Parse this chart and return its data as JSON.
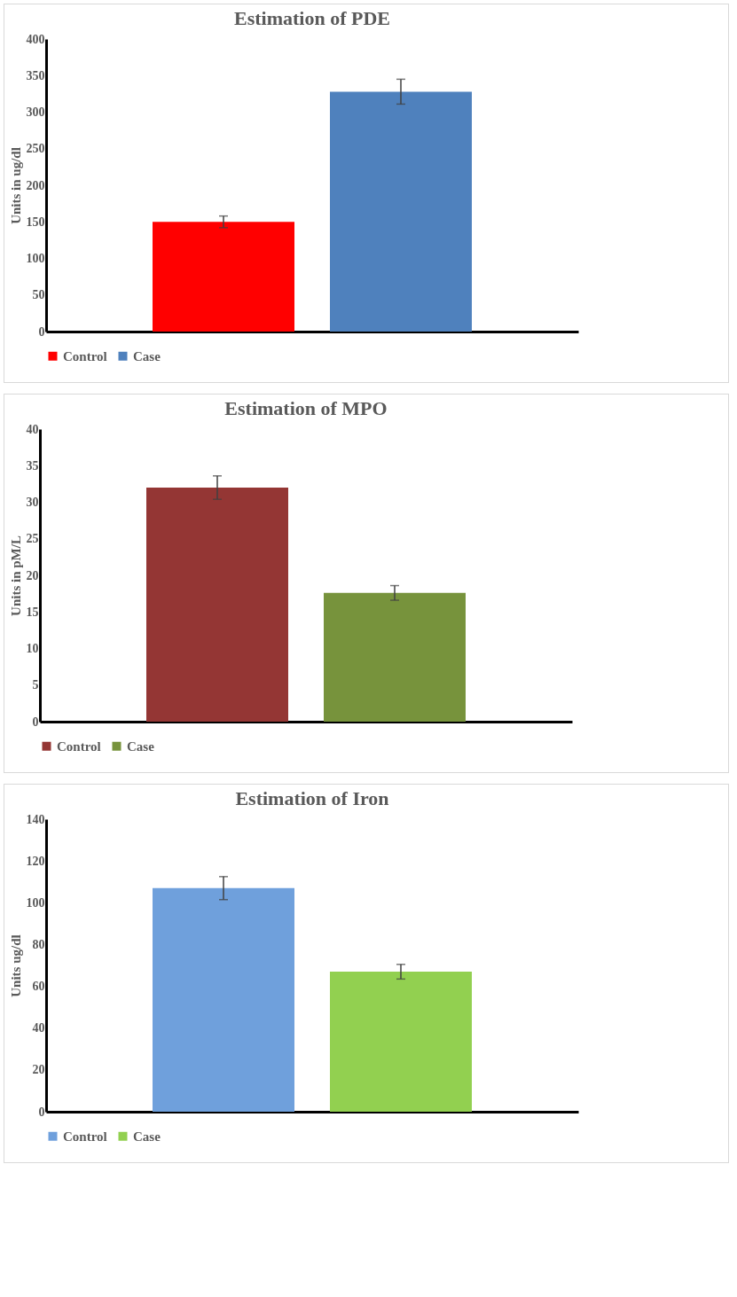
{
  "chart_data": [
    {
      "type": "bar",
      "title": "Estimation of PDE",
      "ylabel": "Units  in ug/dl",
      "categories": [
        null
      ],
      "ylim": [
        0,
        400
      ],
      "yticks": [
        0,
        50,
        100,
        150,
        200,
        250,
        300,
        350,
        400
      ],
      "grid": false,
      "legend": "bottom",
      "series": [
        {
          "name": "Control",
          "color": "#ff0000",
          "values": [
            150
          ],
          "errors": [
            8
          ]
        },
        {
          "name": "Case",
          "color": "#4f81bd",
          "values": [
            328
          ],
          "errors": [
            17
          ]
        }
      ]
    },
    {
      "type": "bar",
      "title": "Estimation of MPO",
      "ylabel": "Units in pM/L",
      "categories": [
        null
      ],
      "ylim": [
        0,
        40
      ],
      "yticks": [
        0,
        5,
        10,
        15,
        20,
        25,
        30,
        35,
        40
      ],
      "grid": false,
      "legend": "bottom",
      "series": [
        {
          "name": "Control",
          "color": "#943634",
          "values": [
            32
          ],
          "errors": [
            1.6
          ]
        },
        {
          "name": "Case",
          "color": "#77933c",
          "values": [
            17.6
          ],
          "errors": [
            1
          ]
        }
      ]
    },
    {
      "type": "bar",
      "title": "Estimation of Iron",
      "ylabel": "Units ug/dl",
      "categories": [
        null
      ],
      "ylim": [
        0,
        140
      ],
      "yticks": [
        0,
        20,
        40,
        60,
        80,
        100,
        120,
        140
      ],
      "grid": false,
      "legend": "bottom",
      "series": [
        {
          "name": "Control",
          "color": "#6fa0dc",
          "values": [
            107
          ],
          "errors": [
            5.5
          ]
        },
        {
          "name": "Case",
          "color": "#92d050",
          "values": [
            67
          ],
          "errors": [
            3.5
          ]
        }
      ]
    }
  ]
}
